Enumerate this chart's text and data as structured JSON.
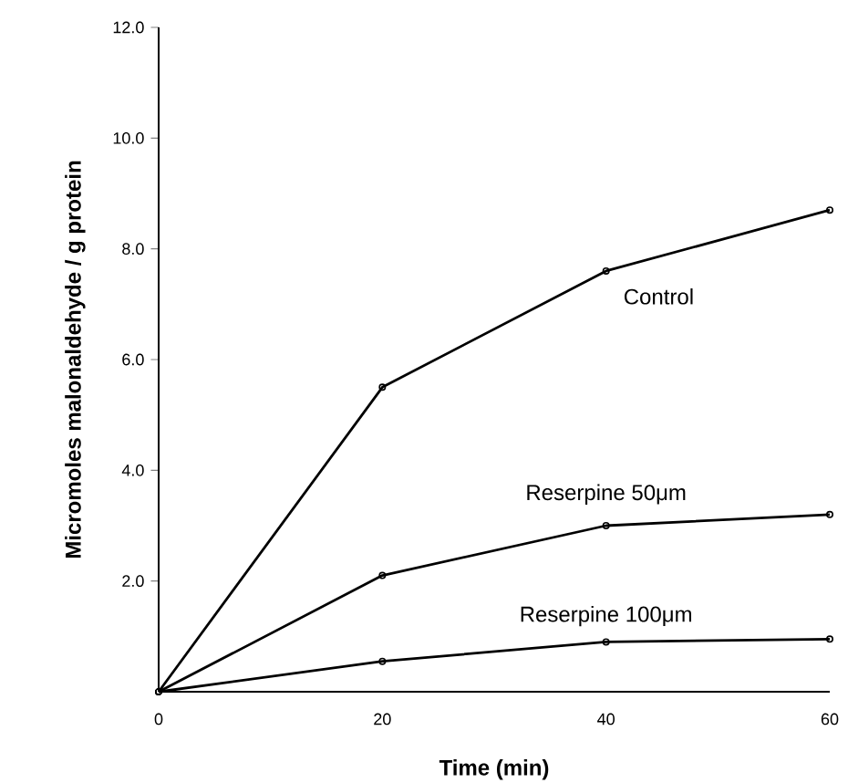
{
  "chart_data": {
    "type": "line",
    "xlabel": "Time (min)",
    "ylabel": "Micromoles malonaldehyde / g protein",
    "x": [
      0,
      20,
      40,
      60
    ],
    "series": [
      {
        "name": "Control",
        "color": "#000000",
        "values": [
          0,
          5.5,
          7.6,
          8.7
        ]
      },
      {
        "name": "Reserpine 50μm",
        "color": "#000000",
        "values": [
          0,
          2.1,
          3.0,
          3.2
        ]
      },
      {
        "name": "Reserpine 100μm",
        "color": "#000000",
        "values": [
          0,
          0.55,
          0.9,
          0.95
        ]
      }
    ],
    "xlim": [
      0,
      60
    ],
    "ylim": [
      0,
      12
    ],
    "xticks": [
      0,
      20,
      40,
      60
    ],
    "yticks": [
      {
        "value": 2,
        "label": "2.0"
      },
      {
        "value": 4,
        "label": "4.0"
      },
      {
        "value": 6,
        "label": "6.0"
      },
      {
        "value": 8,
        "label": "8.0"
      },
      {
        "value": 10,
        "label": "10.0"
      },
      {
        "value": 12,
        "label": "12.0"
      }
    ],
    "marker": "circle",
    "line_style": "solid",
    "grid": false,
    "legend": false
  }
}
